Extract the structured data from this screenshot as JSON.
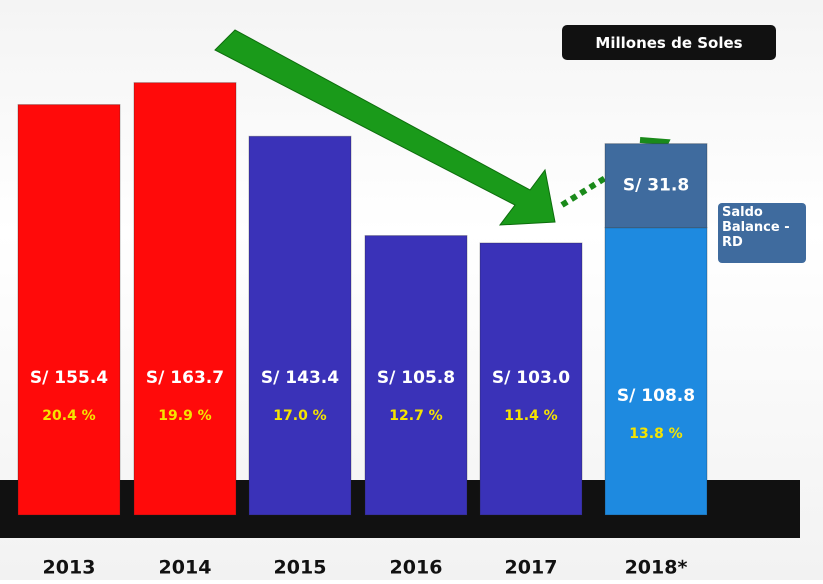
{
  "chart_data": {
    "type": "bar",
    "title": "Millones de Soles",
    "categories": [
      "2013",
      "2014",
      "2015",
      "2016",
      "2017",
      "2018*"
    ],
    "series": [
      {
        "colors": [
          "#ff0a0a",
          "#ff0a0a",
          "#3a32b8",
          "#3a32b8",
          "#3a32b8",
          "#1e8ae0"
        ],
        "values": [
          155.4,
          163.7,
          143.4,
          105.8,
          103,
          108.8
        ],
        "value_labels": [
          "S/ 155.4",
          "S/ 163.7",
          "S/ 143.4",
          "S/ 105.8",
          "S/ 103.0",
          "S/ 108.8"
        ],
        "shares": [
          20.4,
          19.9,
          17.0,
          12.7,
          11.4,
          13.8
        ],
        "share_labels": [
          "20.4 %",
          "19.9 %",
          "17.0 %",
          "12.7 %",
          "11.4 %",
          "13.8 %"
        ]
      },
      {
        "name": "Saldo Balance - RD",
        "color": "#3f6b9e",
        "values": [
          null,
          null,
          null,
          null,
          null,
          31.8
        ],
        "value_labels": [
          null,
          null,
          null,
          null,
          null,
          "S/ 31.8"
        ]
      }
    ],
    "ylim": [
      0,
      195
    ]
  }
}
